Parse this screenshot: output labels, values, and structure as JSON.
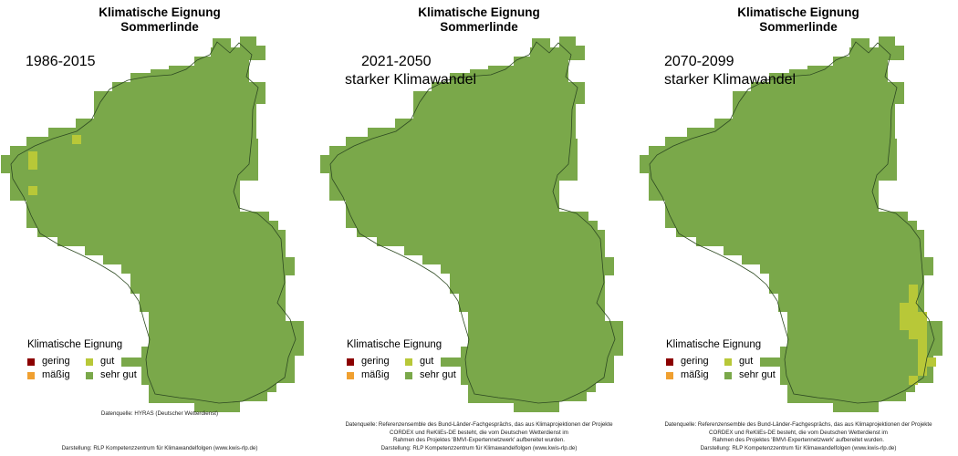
{
  "panels": [
    {
      "title_line1": "Klimatische Eignung",
      "title_line2": "Sommerlinde",
      "period_line1": "1986-2015",
      "period_line2": "",
      "legend_title": "Klimatische Eignung",
      "source": [
        "Datenquelle: HYRAS (Deutscher Wetterdienst)"
      ],
      "credit": "Darstellung: RLP Kompetenzzentrum für Klimawandelfolgen (www.kwis-rlp.de)",
      "cells_gut": [
        [
          31,
          166
        ],
        [
          31,
          176
        ],
        [
          31,
          204
        ],
        [
          79,
          148
        ]
      ]
    },
    {
      "title_line1": "Klimatische Eignung",
      "title_line2": "Sommerlinde",
      "period_line1": "2021-2050",
      "period_line2": "starker Klimawandel",
      "legend_title": "Klimatische Eignung",
      "source": [
        "Datenquelle: Referenzensemble des Bund-Länder-Fachgesprächs, das aus Klimaprojektionen der Projekte",
        "CORDEX und ReKliEs-DE besteht, die vom Deutschen Wetterdienst im",
        "Rahmen des Projektes 'BMVI-Expertennetzwerk' aufbereitet wurden."
      ],
      "credit": "Darstellung: RLP Kompetenzzentrum für Klimawandelfolgen (www.kwis-rlp.de)",
      "cells_gut": []
    },
    {
      "title_line1": "Klimatische Eignung",
      "title_line2": "Sommerlinde",
      "period_line1": "2070-2099",
      "period_line2": "starker Klimawandel",
      "legend_title": "Klimatische Eignung",
      "source": [
        "Datenquelle: Referenzensemble des Bund-Länder-Fachgesprächs, das aus Klimaprojektionen der Projekte",
        "CORDEX und ReKliEs-DE besteht, die vom Deutschen Wetterdienst im",
        "Rahmen des Projektes 'BMVI-Expertennetzwerk' aufbereitet wurden."
      ],
      "credit": "Darstellung: RLP Kompetenzzentrum für Klimawandelfolgen (www.kwis-rlp.de)",
      "cells_gut": [
        [
          296,
          312
        ],
        [
          296,
          322
        ],
        [
          286,
          332
        ],
        [
          296,
          332
        ],
        [
          286,
          342
        ],
        [
          296,
          342
        ],
        [
          306,
          342
        ],
        [
          286,
          352
        ],
        [
          296,
          352
        ],
        [
          306,
          352
        ],
        [
          296,
          362
        ],
        [
          306,
          362
        ],
        [
          306,
          372
        ],
        [
          306,
          382
        ],
        [
          306,
          392
        ],
        [
          316,
          392
        ],
        [
          306,
          402
        ],
        [
          296,
          412
        ]
      ]
    }
  ],
  "legend_items": [
    {
      "label": "gering",
      "color": "#8b0000"
    },
    {
      "label": "gut",
      "color": "#b8c838"
    },
    {
      "label": "mäßig",
      "color": "#f0a030"
    },
    {
      "label": "sehr gut",
      "color": "#7aa84a"
    }
  ],
  "colors": {
    "sehr_gut": "#7aa84a",
    "gut": "#b8c838",
    "border": "#2e4a22"
  }
}
